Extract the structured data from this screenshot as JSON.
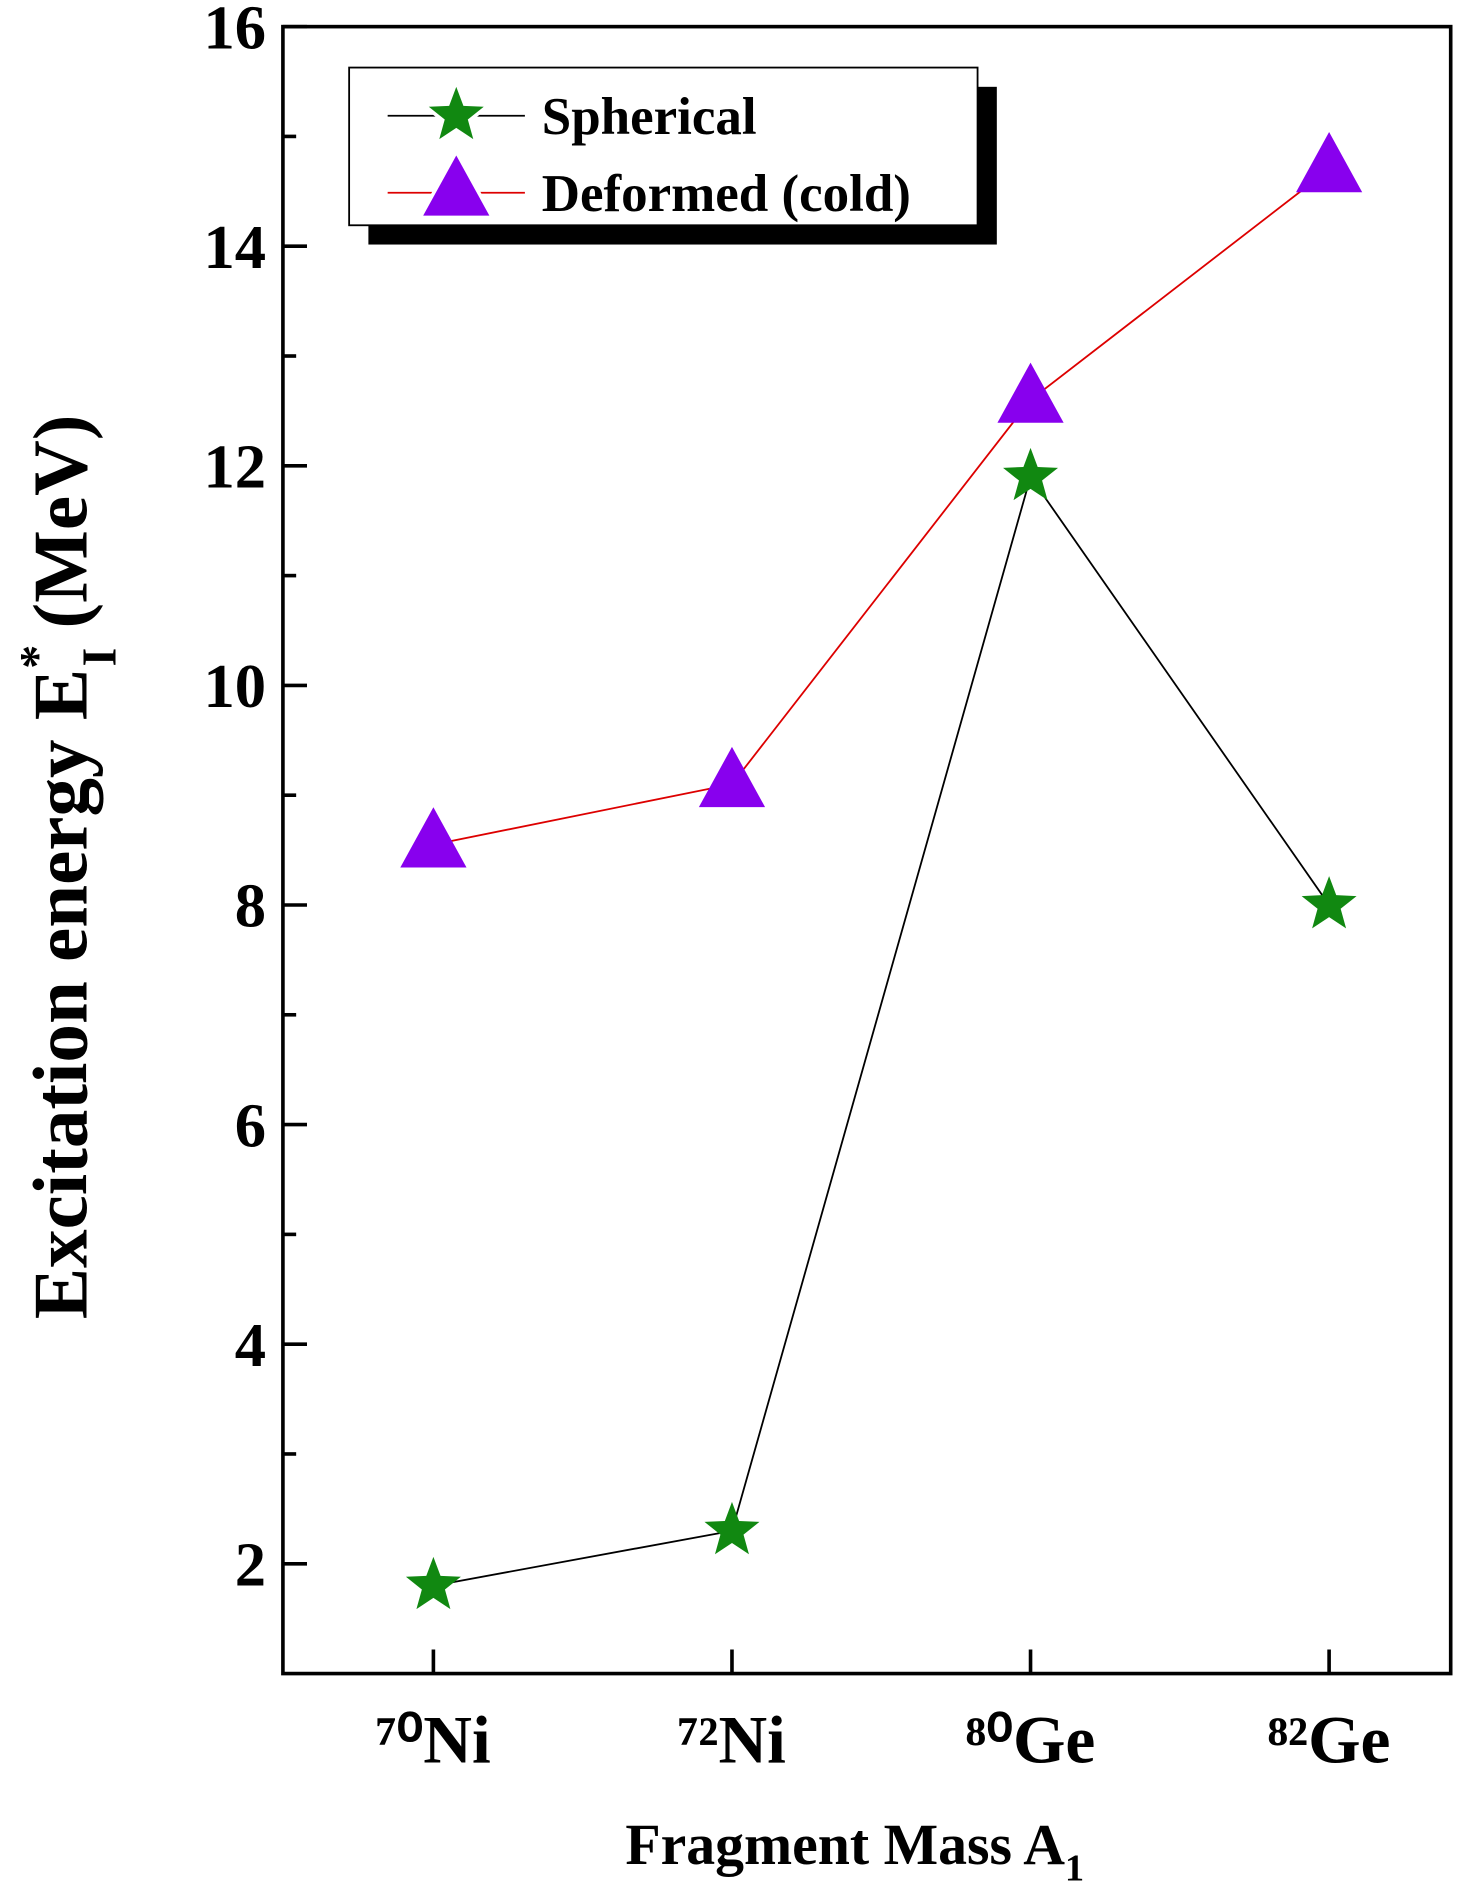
{
  "chart_data": {
    "type": "line",
    "ylabel": {
      "text": "Excitation energy E",
      "sup": "*",
      "sub": "I",
      "unit": "(MeV)"
    },
    "xlabel": {
      "text": "Fragment Mass A",
      "sub": "1"
    },
    "categories": [
      "⁷⁰Ni",
      "⁷²Ni",
      "⁸⁰Ge",
      "⁸²Ge"
    ],
    "series": [
      {
        "name": "Spherical",
        "color": "#118811",
        "line_color": "#000000",
        "marker": "star",
        "values": [
          1.8,
          2.3,
          11.9,
          8.0
        ]
      },
      {
        "name": "Deformed (cold)",
        "color": "#8800ee",
        "line_color": "#dd0000",
        "marker": "triangle",
        "values": [
          8.55,
          9.1,
          12.6,
          14.7
        ]
      }
    ],
    "ylim": [
      1,
      16
    ],
    "yticks": [
      2,
      4,
      6,
      8,
      10,
      12,
      14,
      16
    ],
    "yminorticks": [
      3,
      5,
      7,
      9,
      11,
      13,
      15
    ],
    "legend": "upper left"
  }
}
